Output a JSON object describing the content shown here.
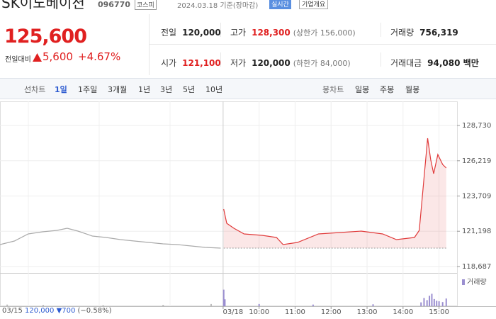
{
  "header": {
    "name": "SK이노베이션",
    "code": "096770",
    "market": "코스피",
    "date": "2024.03.18 기준(장마감)",
    "badge": "실시간",
    "button": "기업개요"
  },
  "price": {
    "current": "125,600",
    "change_label": "전일대비",
    "change": "5,600",
    "percent": "+4.67%"
  },
  "stats": [
    {
      "label": "전일",
      "value": "120,000"
    },
    {
      "label": "고가",
      "value": "128,300",
      "extra": "(상한가 156,000)"
    },
    {
      "label": "거래량",
      "value": "756,319"
    },
    {
      "label": "시가",
      "value": "121,100"
    },
    {
      "label": "저가",
      "value": "120,000",
      "extra": "(하한가 84,000)"
    },
    {
      "label": "거래대금",
      "value": "94,080 백만"
    }
  ],
  "tabs": {
    "line_label": "선차트",
    "line_periods": [
      "1일",
      "1주일",
      "3개월",
      "1년",
      "3년",
      "5년",
      "10년"
    ],
    "candle_label": "봉차트",
    "candle_periods": [
      "일봉",
      "주봉",
      "월봉"
    ]
  },
  "previous": {
    "date": "03/15",
    "close": "120,000",
    "change": "▼700",
    "percent": "(−0.58%)"
  },
  "chart_data": {
    "type": "line",
    "xlim": [
      -372,
      390
    ],
    "ylim": [
      118230,
      130450
    ],
    "yticks": [
      {
        "value": 128730,
        "label": "128,730"
      },
      {
        "value": 126219,
        "label": "126,219"
      },
      {
        "value": 123709,
        "label": "123,709"
      },
      {
        "value": 121198,
        "label": "121,198"
      },
      {
        "value": 118687,
        "label": "118,687"
      }
    ],
    "xticks": [
      {
        "value": 0,
        "label": "03/18"
      },
      {
        "value": 60,
        "label": "10:00"
      },
      {
        "value": 120,
        "label": "11:00"
      },
      {
        "value": 180,
        "label": "12:00"
      },
      {
        "value": 240,
        "label": "13:00"
      },
      {
        "value": 300,
        "label": "14:00"
      },
      {
        "value": 360,
        "label": "15:00"
      }
    ],
    "base_line": 120000,
    "series": [
      {
        "name": "03/15",
        "color": "#aaaaaa",
        "x": [
          -372,
          -348,
          -325,
          -301,
          -277,
          -260,
          -242,
          -218,
          -195,
          -171,
          -148,
          -124,
          -100,
          -77,
          -53,
          -30,
          -4
        ],
        "values": [
          120252,
          120504,
          121009,
          121160,
          121261,
          121412,
          121211,
          120858,
          120756,
          120605,
          120504,
          120403,
          120302,
          120252,
          120151,
          120050,
          119999
        ]
      },
      {
        "name": "03/18",
        "color": "#e03a3a",
        "x": [
          1,
          6,
          18,
          35,
          65,
          89,
          100,
          124,
          159,
          195,
          230,
          266,
          289,
          319,
          327,
          334,
          341,
          346,
          351,
          358,
          366,
          372
        ],
        "values": [
          122775,
          121766,
          121412,
          121009,
          120908,
          120756,
          120252,
          120403,
          121009,
          121110,
          121211,
          121009,
          120605,
          120756,
          121261,
          124542,
          127822,
          126308,
          125299,
          126661,
          125955,
          125702
        ]
      }
    ],
    "volume": {
      "name": "거래량",
      "color": "#9b8fd0",
      "ylim": [
        0,
        100
      ],
      "x": [
        -360,
        -300,
        -200,
        -100,
        -20,
        1,
        3,
        60,
        150,
        250,
        330,
        335,
        340,
        344,
        348,
        352,
        356,
        360,
        366,
        372
      ],
      "values": [
        6,
        5,
        4,
        5,
        8,
        60,
        25,
        8,
        6,
        7,
        14,
        30,
        22,
        38,
        45,
        26,
        20,
        18,
        15,
        28
      ]
    }
  }
}
